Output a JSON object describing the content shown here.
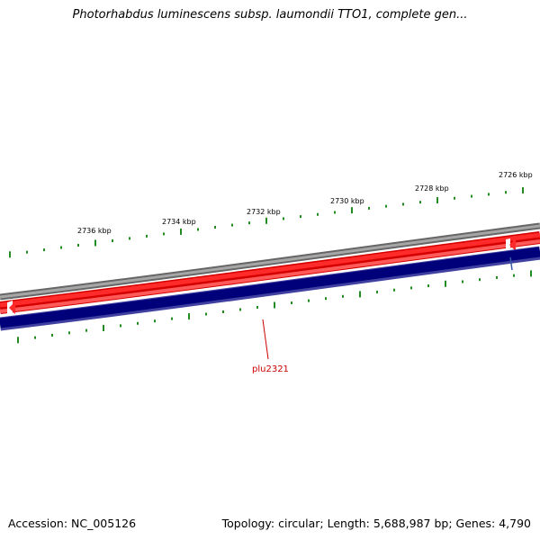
{
  "title": "Photorhabdus luminescens subsp. laumondii TTO1, complete gen...",
  "footer": {
    "accession": "Accession: NC_005126",
    "summary": "Topology: circular; Length: 5,688,987 bp; Genes: 4,790"
  },
  "ruler": {
    "labels": [
      "2736 kbp",
      "2734 kbp",
      "2732 kbp",
      "2730 kbp",
      "2728 kbp",
      "2726 kbp"
    ]
  },
  "genes": [
    {
      "name": "plu2321",
      "strand": "forward"
    }
  ],
  "colors": {
    "backbone": "#808080",
    "forward_strand": "#ff0000",
    "reverse_strand": "#000080",
    "ticks": "#228b22",
    "gene_label": "#cc0000"
  }
}
